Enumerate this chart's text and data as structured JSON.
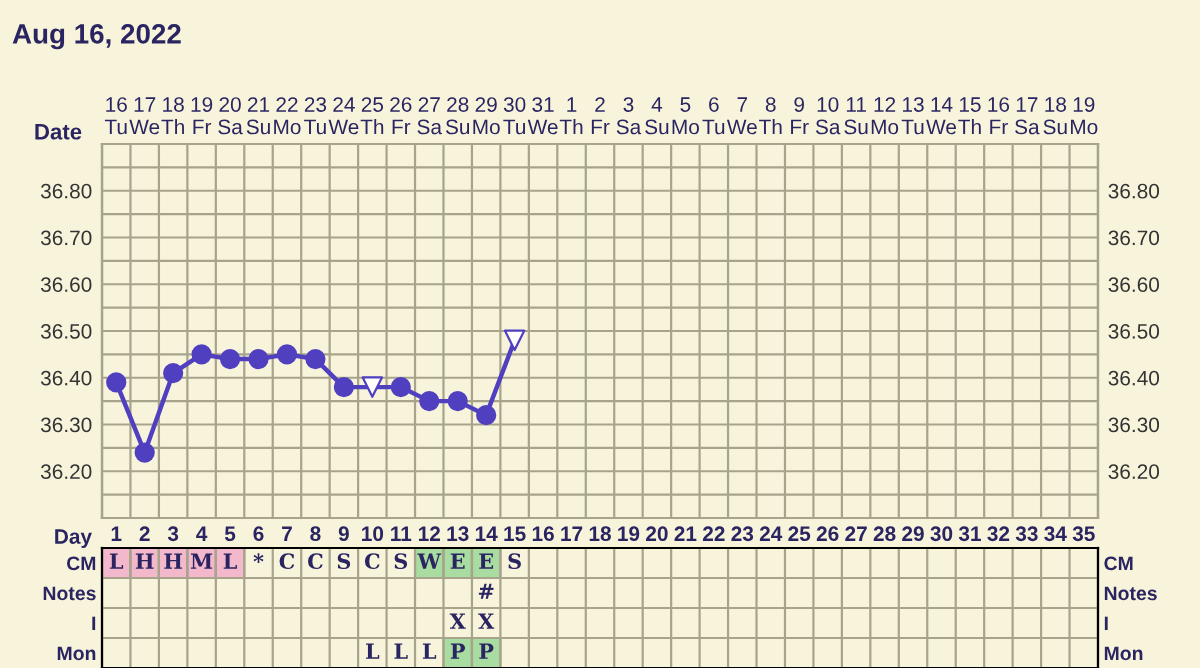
{
  "chart_data": [
    {
      "type": "line",
      "title": "Aug 16, 2022",
      "xlabel": "Date",
      "categories": [
        "16\nTu",
        "17\nWe",
        "18\nTh",
        "19\nFr",
        "20\nSa",
        "21\nSu",
        "22\nMo",
        "23\nTu",
        "24\nWe",
        "25\nTh",
        "26\nFr",
        "27\nSa",
        "28\nSu",
        "29\nMo",
        "30\nTu",
        "31\nWe",
        "1\nTh",
        "2\nFr",
        "3\nSa",
        "4\nSu",
        "5\nMo",
        "6\nTu",
        "7\nWe",
        "8\nTh",
        "9\nFr",
        "10\nSa",
        "11\nSu",
        "12\nMo",
        "13\nTu",
        "14\nWe",
        "15\nTh",
        "16\nFr",
        "17\nSa",
        "18\nSu",
        "19\nMo"
      ],
      "series": [
        {
          "type": "line",
          "color": "#5040c0",
          "marker": "none",
          "values": [
            36.39,
            36.24,
            36.41,
            36.45,
            36.44,
            36.44,
            36.45,
            36.44,
            36.38,
            36.38,
            36.38,
            36.35,
            36.35,
            36.32,
            36.48,
            null,
            null,
            null,
            null,
            null,
            null,
            null,
            null,
            null,
            null,
            null,
            null,
            null,
            null,
            null,
            null,
            null,
            null,
            null,
            null
          ]
        },
        {
          "type": "scatter",
          "color": "#5040c0",
          "marker": "circle",
          "values": [
            36.39,
            36.24,
            36.41,
            36.45,
            36.44,
            36.44,
            36.45,
            36.44,
            36.38,
            null,
            36.38,
            36.35,
            36.35,
            36.32,
            null,
            null,
            null,
            null,
            null,
            null,
            null,
            null,
            null,
            null,
            null,
            null,
            null,
            null,
            null,
            null,
            null,
            null,
            null,
            null,
            null
          ]
        },
        {
          "type": "scatter",
          "color": "#ffffff",
          "marker": "triangle",
          "values": [
            null,
            null,
            null,
            null,
            null,
            null,
            null,
            null,
            null,
            36.38,
            null,
            null,
            null,
            null,
            36.48,
            null,
            null,
            null,
            null,
            null,
            null,
            null,
            null,
            null,
            null,
            null,
            null,
            null,
            null,
            null,
            null,
            null,
            null,
            null,
            null
          ]
        }
      ],
      "ylim": [
        36.1,
        36.9
      ],
      "yticks": [
        {
          "value": 36.15,
          "label": null
        },
        {
          "value": 36.2,
          "label": "36.20"
        },
        {
          "value": 36.25,
          "label": null
        },
        {
          "value": 36.3,
          "label": "36.30"
        },
        {
          "value": 36.35,
          "label": null
        },
        {
          "value": 36.4,
          "label": "36.40"
        },
        {
          "value": 36.45,
          "label": null
        },
        {
          "value": 36.5,
          "label": "36.50"
        },
        {
          "value": 36.55,
          "label": null
        },
        {
          "value": 36.6,
          "label": "36.60"
        },
        {
          "value": 36.65,
          "label": null
        },
        {
          "value": 36.7,
          "label": "36.70"
        },
        {
          "value": 36.75,
          "label": null
        },
        {
          "value": 36.8,
          "label": "36.80"
        },
        {
          "value": 36.85,
          "label": null
        }
      ],
      "y2lim": [
        36.1,
        36.9
      ],
      "y2ticks": [
        {
          "value": 36.15,
          "label": null
        },
        {
          "value": 36.2,
          "label": "36.20"
        },
        {
          "value": 36.25,
          "label": null
        },
        {
          "value": 36.3,
          "label": "36.30"
        },
        {
          "value": 36.35,
          "label": null
        },
        {
          "value": 36.4,
          "label": "36.40"
        },
        {
          "value": 36.45,
          "label": null
        },
        {
          "value": 36.5,
          "label": "36.50"
        },
        {
          "value": 36.55,
          "label": null
        },
        {
          "value": 36.6,
          "label": "36.60"
        },
        {
          "value": 36.65,
          "label": null
        },
        {
          "value": 36.7,
          "label": "36.70"
        },
        {
          "value": 36.75,
          "label": null
        },
        {
          "value": 36.8,
          "label": "36.80"
        },
        {
          "value": 36.85,
          "label": null
        }
      ],
      "grid": true
    },
    {
      "type": "heatmap",
      "xlabel": "Day",
      "categories": [
        "1",
        "2",
        "3",
        "4",
        "5",
        "6",
        "7",
        "8",
        "9",
        "10",
        "11",
        "12",
        "13",
        "14",
        "15",
        "16",
        "17",
        "18",
        "19",
        "20",
        "21",
        "22",
        "23",
        "24",
        "25",
        "26",
        "27",
        "28",
        "29",
        "30",
        "31",
        "32",
        "33",
        "34",
        "35"
      ],
      "y_categories": [
        "CM",
        "Notes",
        "I",
        "Mon"
      ],
      "y2_categories": [
        "CM",
        "Notes",
        "I",
        "Mon"
      ],
      "cells": [
        [
          null,
          null,
          null,
          null,
          null,
          null,
          null,
          null,
          null,
          null,
          null,
          null,
          null,
          null,
          null,
          null,
          null,
          null,
          null,
          null,
          null,
          null,
          null,
          null,
          null,
          null,
          null,
          null,
          null,
          null,
          null,
          null,
          null,
          null,
          null
        ],
        [
          null,
          null,
          null,
          null,
          null,
          null,
          null,
          null,
          null,
          null,
          null,
          null,
          null,
          null,
          null,
          null,
          null,
          null,
          null,
          null,
          null,
          null,
          null,
          null,
          null,
          null,
          null,
          null,
          null,
          null,
          null,
          null,
          null,
          null,
          null
        ],
        [
          null,
          null,
          null,
          null,
          null,
          null,
          null,
          null,
          null,
          null,
          null,
          null,
          null,
          null,
          null,
          null,
          null,
          null,
          null,
          null,
          null,
          null,
          null,
          null,
          null,
          null,
          null,
          null,
          null,
          null,
          null,
          null,
          null,
          null,
          null
        ],
        [
          null,
          null,
          null,
          null,
          null,
          null,
          null,
          null,
          null,
          null,
          null,
          null,
          null,
          null,
          null,
          null,
          null,
          null,
          null,
          null,
          null,
          null,
          null,
          null,
          null,
          null,
          null,
          null,
          null,
          null,
          null,
          null,
          null,
          null,
          null
        ]
      ],
      "cell_labels": [
        [
          "L",
          "H",
          "H",
          "M",
          "L",
          "*",
          "C",
          "C",
          "S",
          "C",
          "S",
          "W",
          "E",
          "E",
          "S",
          null,
          null,
          null,
          null,
          null,
          null,
          null,
          null,
          null,
          null,
          null,
          null,
          null,
          null,
          null,
          null,
          null,
          null,
          null,
          null
        ],
        [
          null,
          null,
          null,
          null,
          null,
          null,
          null,
          null,
          null,
          null,
          null,
          null,
          null,
          "#",
          null,
          null,
          null,
          null,
          null,
          null,
          null,
          null,
          null,
          null,
          null,
          null,
          null,
          null,
          null,
          null,
          null,
          null,
          null,
          null,
          null
        ],
        [
          null,
          null,
          null,
          null,
          null,
          null,
          null,
          null,
          null,
          null,
          null,
          null,
          "X",
          "X",
          null,
          null,
          null,
          null,
          null,
          null,
          null,
          null,
          null,
          null,
          null,
          null,
          null,
          null,
          null,
          null,
          null,
          null,
          null,
          null,
          null
        ],
        [
          null,
          null,
          null,
          null,
          null,
          null,
          null,
          null,
          null,
          "L",
          "L",
          "L",
          "P",
          "P",
          null,
          null,
          null,
          null,
          null,
          null,
          null,
          null,
          null,
          null,
          null,
          null,
          null,
          null,
          null,
          null,
          null,
          null,
          null,
          null,
          null
        ]
      ],
      "colors": [
        [
          "#f4b8cc",
          "#f4b8cc",
          "#f4b8cc",
          "#f4b8cc",
          "#f4b8cc",
          null,
          null,
          null,
          null,
          null,
          null,
          "#a8dca0",
          "#a8dca0",
          "#a8dca0",
          null,
          null,
          null,
          null,
          null,
          null,
          null,
          null,
          null,
          null,
          null,
          null,
          null,
          null,
          null,
          null,
          null,
          null,
          null,
          null,
          null
        ],
        [
          null,
          null,
          null,
          null,
          null,
          null,
          null,
          null,
          null,
          null,
          null,
          null,
          null,
          null,
          null,
          null,
          null,
          null,
          null,
          null,
          null,
          null,
          null,
          null,
          null,
          null,
          null,
          null,
          null,
          null,
          null,
          null,
          null,
          null,
          null
        ],
        [
          null,
          null,
          null,
          null,
          null,
          null,
          null,
          null,
          null,
          null,
          null,
          null,
          null,
          null,
          null,
          null,
          null,
          null,
          null,
          null,
          null,
          null,
          null,
          null,
          null,
          null,
          null,
          null,
          null,
          null,
          null,
          null,
          null,
          null,
          null
        ],
        [
          null,
          null,
          null,
          null,
          null,
          null,
          null,
          null,
          null,
          null,
          null,
          null,
          "#a8dca0",
          "#a8dca0",
          null,
          null,
          null,
          null,
          null,
          null,
          null,
          null,
          null,
          null,
          null,
          null,
          null,
          null,
          null,
          null,
          null,
          null,
          null,
          null,
          null
        ]
      ]
    }
  ]
}
